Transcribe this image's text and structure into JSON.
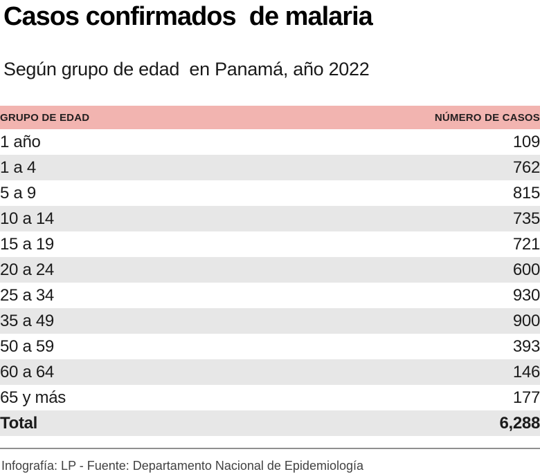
{
  "title": "Casos confirmados  de malaria",
  "subtitle": "Según grupo de edad  en Panamá, año 2022",
  "table": {
    "columns": {
      "age_group": "GRUPO DE EDAD",
      "cases": "NÚMERO DE CASOS"
    },
    "rows": [
      {
        "label": "1 año",
        "value": "109"
      },
      {
        "label": "1 a 4",
        "value": "762"
      },
      {
        "label": "5 a 9",
        "value": "815"
      },
      {
        "label": "10 a 14",
        "value": "735"
      },
      {
        "label": "15 a 19",
        "value": "721"
      },
      {
        "label": "20 a 24",
        "value": "600"
      },
      {
        "label": "25 a 34",
        "value": "930"
      },
      {
        "label": "35 a 49",
        "value": "900"
      },
      {
        "label": "50 a 59",
        "value": "393"
      },
      {
        "label": "60 a 64",
        "value": "146"
      },
      {
        "label": "65 y más",
        "value": "177"
      }
    ],
    "total": {
      "label": "Total",
      "value": "6,288"
    }
  },
  "footer": "Infografía: LP - Fuente: Departamento Nacional de Epidemiología",
  "colors": {
    "header_bg": "#F2B4B0",
    "row_alt_bg": "#E7E7E7",
    "rule": "#8F8F8F",
    "footer_text": "#414141"
  },
  "chart_data": {
    "type": "table",
    "title": "Casos confirmados de malaria",
    "subtitle": "Según grupo de edad en Panamá, año 2022",
    "columns": [
      "Grupo de edad",
      "Número de casos"
    ],
    "categories": [
      "1 año",
      "1 a 4",
      "5 a 9",
      "10 a 14",
      "15 a 19",
      "20 a 24",
      "25 a 34",
      "35 a 49",
      "50 a 59",
      "60 a 64",
      "65 y más"
    ],
    "values": [
      109,
      762,
      815,
      735,
      721,
      600,
      930,
      900,
      393,
      146,
      177
    ],
    "total": 6288,
    "source": "Infografía: LP - Fuente: Departamento Nacional de Epidemiología"
  }
}
